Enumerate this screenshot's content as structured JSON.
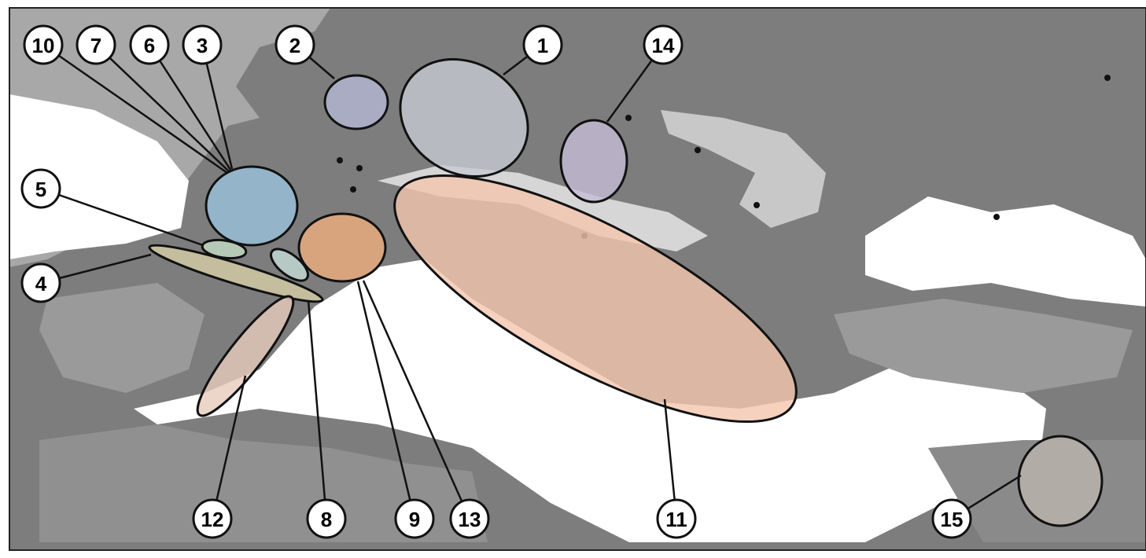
{
  "regions": [
    {
      "label": "1"
    },
    {
      "label": "2"
    },
    {
      "label": "3"
    },
    {
      "label": "4"
    },
    {
      "label": "5"
    },
    {
      "label": "6"
    },
    {
      "label": "7"
    },
    {
      "label": "8"
    },
    {
      "label": "9"
    },
    {
      "label": "10"
    },
    {
      "label": "11"
    },
    {
      "label": "12"
    },
    {
      "label": "13"
    },
    {
      "label": "14"
    },
    {
      "label": "15"
    }
  ]
}
